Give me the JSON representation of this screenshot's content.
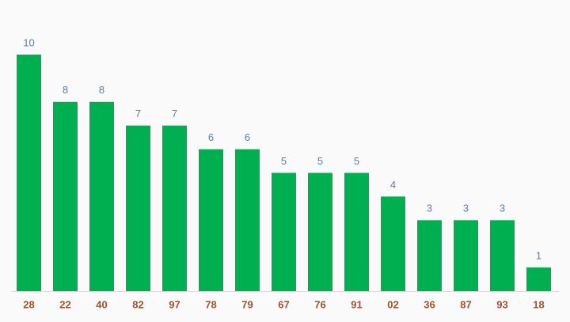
{
  "chart_data": {
    "type": "bar",
    "categories": [
      "28",
      "22",
      "40",
      "82",
      "97",
      "78",
      "79",
      "67",
      "76",
      "91",
      "02",
      "36",
      "87",
      "93",
      "18"
    ],
    "values": [
      10,
      8,
      8,
      7,
      7,
      6,
      6,
      5,
      5,
      5,
      4,
      3,
      3,
      3,
      1
    ],
    "color": "#00b050"
  }
}
